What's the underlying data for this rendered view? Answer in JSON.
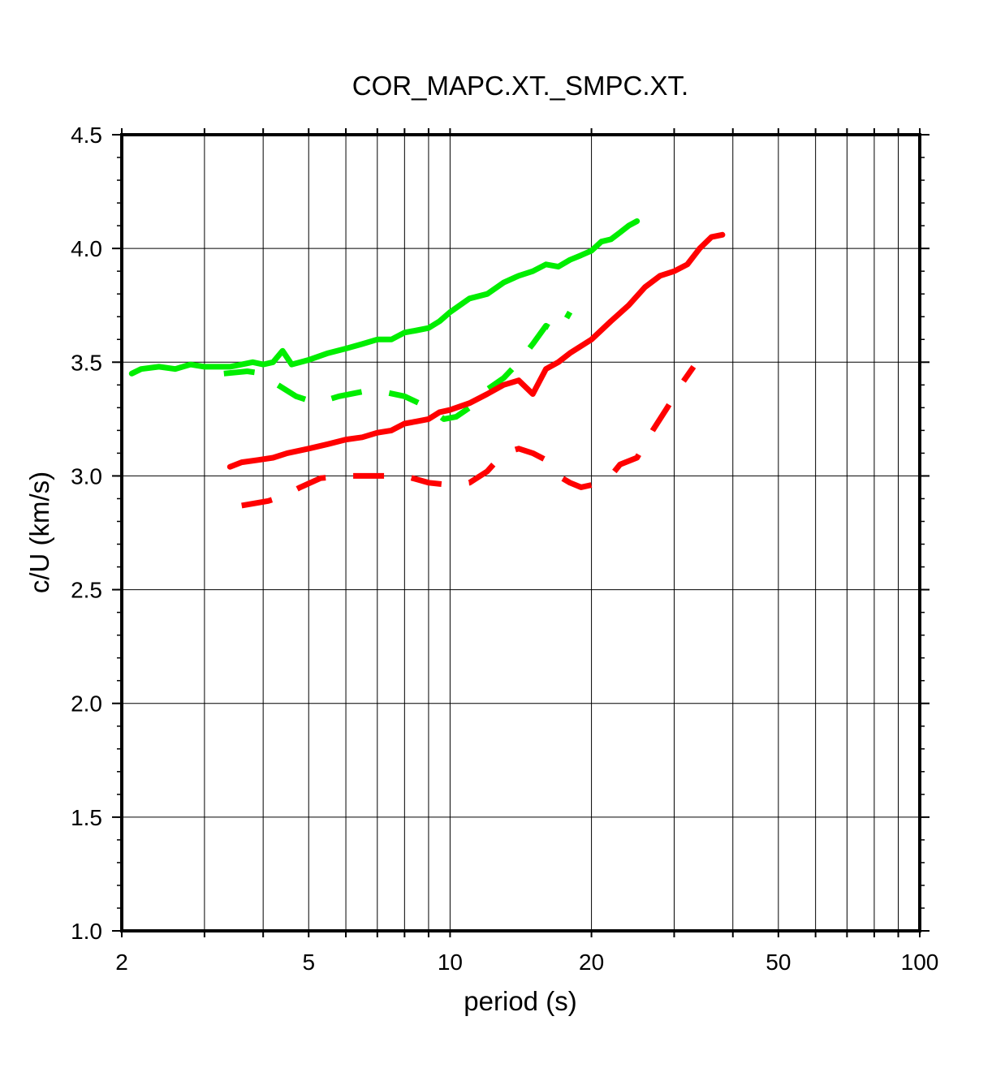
{
  "chart_data": {
    "type": "line",
    "title": "COR_MAPC.XT._SMPC.XT.",
    "xlabel": "period (s)",
    "ylabel": "c/U (km/s)",
    "xscale": "log",
    "xlim": [
      2,
      100
    ],
    "ylim": [
      1.0,
      4.5
    ],
    "xticks": [
      2,
      5,
      10,
      20,
      50,
      100
    ],
    "xtick_labels": [
      "2",
      "5",
      "10",
      "20",
      "50",
      "100"
    ],
    "yticks": [
      1.0,
      1.5,
      2.0,
      2.5,
      3.0,
      3.5,
      4.0,
      4.5
    ],
    "ytick_labels": [
      "1.0",
      "1.5",
      "2.0",
      "2.5",
      "3.0",
      "3.5",
      "4.0",
      "4.5"
    ],
    "grid": true,
    "series": [
      {
        "color": "#00ee00",
        "style": "solid",
        "x": [
          2.1,
          2.2,
          2.4,
          2.6,
          2.8,
          3.0,
          3.2,
          3.4,
          3.6,
          3.8,
          4.0,
          4.2,
          4.4,
          4.6,
          4.8,
          5.0,
          5.5,
          6.0,
          6.5,
          7.0,
          7.5,
          8.0,
          8.5,
          9.0,
          9.5,
          10.0,
          11.0,
          12.0,
          13.0,
          14.0,
          15.0,
          16.0,
          17.0,
          18.0,
          19.0,
          20.0,
          21.0,
          22.0,
          23.0,
          24.0,
          25.0
        ],
        "y": [
          3.45,
          3.47,
          3.48,
          3.47,
          3.49,
          3.48,
          3.48,
          3.48,
          3.49,
          3.5,
          3.49,
          3.5,
          3.55,
          3.49,
          3.5,
          3.51,
          3.54,
          3.56,
          3.58,
          3.6,
          3.6,
          3.63,
          3.64,
          3.65,
          3.68,
          3.72,
          3.78,
          3.8,
          3.85,
          3.88,
          3.9,
          3.93,
          3.92,
          3.95,
          3.97,
          3.99,
          4.03,
          4.04,
          4.07,
          4.1,
          4.12
        ]
      },
      {
        "color": "#00ee00",
        "style": "dashed",
        "x": [
          3.3,
          3.7,
          4.0,
          4.3,
          4.7,
          5.2,
          5.8,
          6.5,
          7.2,
          8.0,
          9.0,
          9.7,
          10.3,
          11.0,
          12.0,
          13.0,
          14.0,
          15.0,
          16.0,
          17.0,
          18.0
        ],
        "y": [
          3.45,
          3.46,
          3.45,
          3.4,
          3.35,
          3.32,
          3.35,
          3.37,
          3.37,
          3.35,
          3.3,
          3.25,
          3.26,
          3.3,
          3.38,
          3.43,
          3.5,
          3.58,
          3.66,
          3.63,
          3.72
        ]
      },
      {
        "color": "#ff0000",
        "style": "solid",
        "x": [
          3.4,
          3.6,
          3.9,
          4.2,
          4.5,
          5.0,
          5.5,
          6.0,
          6.5,
          7.0,
          7.5,
          8.0,
          8.5,
          9.0,
          9.5,
          10.0,
          11.0,
          12.0,
          13.0,
          14.0,
          15.0,
          16.0,
          17.0,
          18.0,
          20.0,
          22.0,
          24.0,
          26.0,
          28.0,
          30.0,
          32.0,
          34.0,
          36.0,
          38.0
        ],
        "y": [
          3.04,
          3.06,
          3.07,
          3.08,
          3.1,
          3.12,
          3.14,
          3.16,
          3.17,
          3.19,
          3.2,
          3.23,
          3.24,
          3.25,
          3.28,
          3.29,
          3.32,
          3.36,
          3.4,
          3.42,
          3.36,
          3.47,
          3.5,
          3.54,
          3.6,
          3.68,
          3.75,
          3.83,
          3.88,
          3.9,
          3.93,
          4.0,
          4.05,
          4.06
        ]
      },
      {
        "color": "#ff0000",
        "style": "dashed",
        "x": [
          3.6,
          4.1,
          4.4,
          4.8,
          5.3,
          6.0,
          7.0,
          8.0,
          9.0,
          10.0,
          11.0,
          12.0,
          13.0,
          14.0,
          15.0,
          16.0,
          17.0,
          18.0,
          19.0,
          20.0,
          21.0,
          22.0,
          23.0,
          25.0,
          27.0,
          29.0,
          31.0,
          33.0
        ],
        "y": [
          2.87,
          2.89,
          2.91,
          2.95,
          2.99,
          3.0,
          3.0,
          3.0,
          2.97,
          2.96,
          2.97,
          3.02,
          3.1,
          3.12,
          3.1,
          3.07,
          3.0,
          2.97,
          2.95,
          2.96,
          2.97,
          3.0,
          3.05,
          3.08,
          3.2,
          3.3,
          3.4,
          3.48
        ]
      }
    ]
  }
}
